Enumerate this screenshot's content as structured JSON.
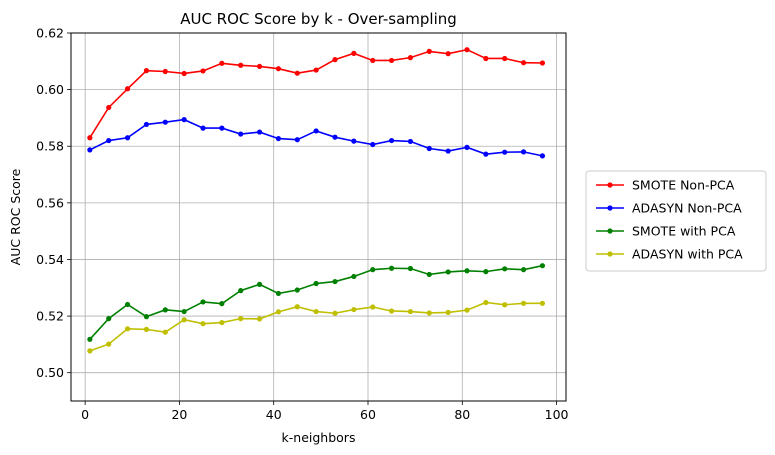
{
  "chart_data": {
    "type": "line",
    "title": "AUC ROC Score by k - Over-sampling",
    "xlabel": "k-neighbors",
    "ylabel": "AUC ROC Score",
    "xlim": [
      -3,
      102
    ],
    "ylim": [
      0.49,
      0.62
    ],
    "xticks": [
      0,
      20,
      40,
      60,
      80,
      100
    ],
    "xtick_labels": [
      "0",
      "20",
      "40",
      "60",
      "80",
      "100"
    ],
    "yticks": [
      0.5,
      0.52,
      0.54,
      0.56,
      0.58,
      0.6,
      0.62
    ],
    "ytick_labels": [
      "0.50",
      "0.52",
      "0.54",
      "0.56",
      "0.58",
      "0.60",
      "0.62"
    ],
    "grid": true,
    "legend": "outside-right",
    "x": [
      1,
      5,
      9,
      13,
      17,
      21,
      25,
      29,
      33,
      37,
      41,
      45,
      49,
      53,
      57,
      61,
      65,
      69,
      73,
      77,
      81,
      85,
      89,
      93,
      97
    ],
    "series": [
      {
        "name": "SMOTE Non-PCA",
        "color": "#ff0000",
        "values": [
          0.583,
          0.5937,
          0.6003,
          0.6067,
          0.6064,
          0.6057,
          0.6066,
          0.6093,
          0.6086,
          0.6082,
          0.6074,
          0.6058,
          0.6069,
          0.6106,
          0.6128,
          0.6103,
          0.6103,
          0.6113,
          0.6135,
          0.6127,
          0.6141,
          0.611,
          0.611,
          0.6095,
          0.6094
        ]
      },
      {
        "name": "ADASYN Non-PCA",
        "color": "#0000ff",
        "values": [
          0.5787,
          0.582,
          0.583,
          0.5877,
          0.5885,
          0.5894,
          0.5864,
          0.5864,
          0.5843,
          0.585,
          0.5827,
          0.5823,
          0.5854,
          0.5832,
          0.5818,
          0.5806,
          0.582,
          0.5817,
          0.5792,
          0.5783,
          0.5796,
          0.5772,
          0.5779,
          0.578,
          0.5766
        ]
      },
      {
        "name": "SMOTE with PCA",
        "color": "#008000",
        "values": [
          0.5118,
          0.5191,
          0.5241,
          0.5198,
          0.5222,
          0.5216,
          0.525,
          0.5244,
          0.529,
          0.5312,
          0.528,
          0.5292,
          0.5315,
          0.5322,
          0.534,
          0.5364,
          0.5369,
          0.5368,
          0.5347,
          0.5356,
          0.536,
          0.5357,
          0.5367,
          0.5364,
          0.5378
        ]
      },
      {
        "name": "ADASYN with PCA",
        "color": "#bfbf00",
        "values": [
          0.5077,
          0.5101,
          0.5155,
          0.5153,
          0.5143,
          0.5187,
          0.5173,
          0.5177,
          0.5191,
          0.519,
          0.5215,
          0.5233,
          0.5216,
          0.521,
          0.5223,
          0.5232,
          0.5218,
          0.5216,
          0.5211,
          0.5213,
          0.5221,
          0.5248,
          0.524,
          0.5245,
          0.5245
        ]
      }
    ]
  }
}
